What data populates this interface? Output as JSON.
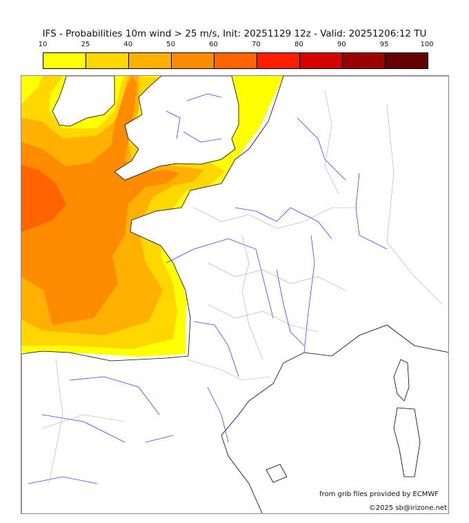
{
  "title": "IFS - Probabilities 10m wind > 25 m/s, Init: 20251129 12z - Valid: 20251206:12 TU",
  "colorbar": {
    "ticks": [
      "10",
      "25",
      "40",
      "50",
      "60",
      "70",
      "80",
      "90",
      "95",
      "100"
    ],
    "colors": [
      "#ffff00",
      "#ffd700",
      "#ffb000",
      "#ff8c00",
      "#ff6400",
      "#ff1e00",
      "#d70000",
      "#9b0000",
      "#640000"
    ]
  },
  "credits": {
    "source": "from grib files provided by ECMWF",
    "copyright": "©2025 sb@irizone.net"
  }
}
